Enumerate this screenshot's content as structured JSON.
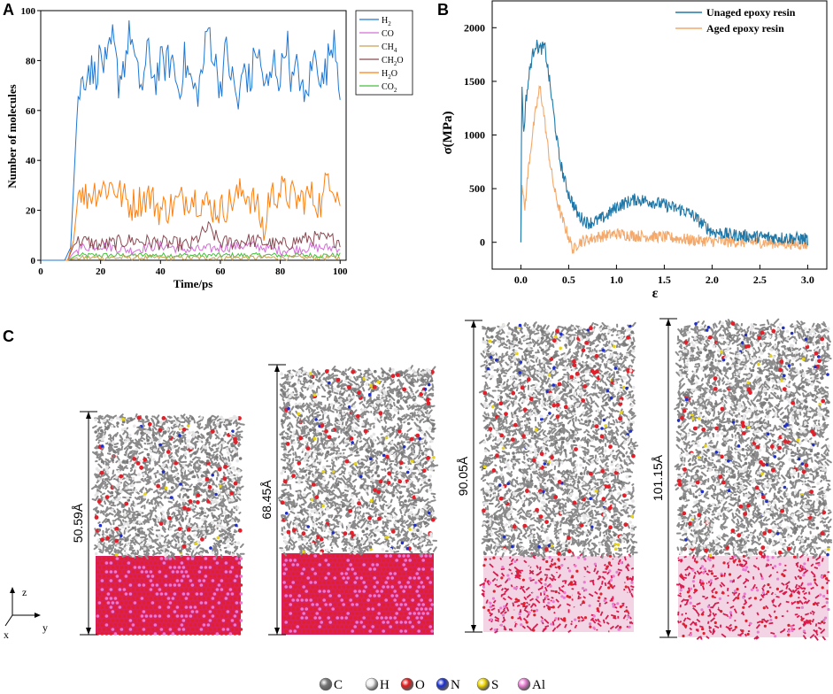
{
  "panels": {
    "a": "A",
    "b": "B",
    "c": "C"
  },
  "chart_data": [
    {
      "type": "line",
      "id": "A",
      "xlabel": "Time/ps",
      "ylabel": "Number of molecules",
      "xlim": [
        0,
        102
      ],
      "ylim": [
        0,
        100
      ],
      "xticks": [
        "0",
        "20",
        "40",
        "60",
        "80",
        "100"
      ],
      "yticks": [
        "0",
        "20",
        "40",
        "60",
        "80",
        "100"
      ],
      "legend_position": "top-right",
      "series": [
        {
          "name": "H2",
          "label_main": "H",
          "label_sub": "2",
          "color": "#1f77d4",
          "mean": 74,
          "amp": 8,
          "points": [
            [
              0,
              0
            ],
            [
              8,
              0
            ],
            [
              10,
              5
            ],
            [
              11,
              30
            ],
            [
              12,
              55
            ],
            [
              13,
              68
            ],
            [
              14,
              72
            ],
            [
              16,
              78
            ],
            [
              18,
              74
            ],
            [
              20,
              82
            ],
            [
              22,
              76
            ],
            [
              24,
              88
            ],
            [
              26,
              72
            ],
            [
              28,
              80
            ],
            [
              30,
              92
            ],
            [
              32,
              74
            ],
            [
              34,
              70
            ],
            [
              36,
              84
            ],
            [
              38,
              72
            ],
            [
              40,
              78
            ],
            [
              44,
              80
            ],
            [
              46,
              68
            ],
            [
              48,
              80
            ],
            [
              50,
              72
            ],
            [
              52,
              66
            ],
            [
              54,
              76
            ],
            [
              56,
              94
            ],
            [
              58,
              80
            ],
            [
              60,
              70
            ],
            [
              62,
              84
            ],
            [
              64,
              72
            ],
            [
              66,
              62
            ],
            [
              68,
              78
            ],
            [
              70,
              70
            ],
            [
              72,
              86
            ],
            [
              74,
              74
            ],
            [
              76,
              68
            ],
            [
              78,
              80
            ],
            [
              80,
              72
            ],
            [
              82,
              90
            ],
            [
              84,
              70
            ],
            [
              86,
              78
            ],
            [
              88,
              62
            ],
            [
              90,
              74
            ],
            [
              92,
              84
            ],
            [
              94,
              70
            ],
            [
              96,
              80
            ],
            [
              98,
              92
            ],
            [
              100,
              70
            ]
          ]
        },
        {
          "name": "CO",
          "label_main": "CO",
          "label_sub": "",
          "color": "#d36ed8",
          "mean": 5,
          "amp": 2,
          "points": [
            [
              0,
              0
            ],
            [
              9,
              0
            ],
            [
              11,
              3
            ],
            [
              13,
              5
            ],
            [
              20,
              6
            ],
            [
              30,
              4
            ],
            [
              40,
              6
            ],
            [
              50,
              4
            ],
            [
              60,
              5
            ],
            [
              70,
              6
            ],
            [
              80,
              4
            ],
            [
              90,
              5
            ],
            [
              100,
              5
            ]
          ]
        },
        {
          "name": "CH4",
          "label_main": "CH",
          "label_sub": "4",
          "color": "#c9a050",
          "mean": 1,
          "amp": 1,
          "points": [
            [
              0,
              0
            ],
            [
              9,
              0
            ],
            [
              12,
              1
            ],
            [
              30,
              1
            ],
            [
              60,
              1
            ],
            [
              100,
              1
            ]
          ]
        },
        {
          "name": "CH2O",
          "label_main": "CH",
          "label_sub": "2",
          "label_tail": "O",
          "color": "#8b4a52",
          "mean": 7,
          "amp": 3,
          "points": [
            [
              0,
              0
            ],
            [
              9,
              0
            ],
            [
              11,
              6
            ],
            [
              13,
              8
            ],
            [
              20,
              6
            ],
            [
              30,
              8
            ],
            [
              40,
              7
            ],
            [
              50,
              6
            ],
            [
              56,
              13
            ],
            [
              60,
              7
            ],
            [
              70,
              8
            ],
            [
              80,
              6
            ],
            [
              90,
              9
            ],
            [
              100,
              8
            ]
          ]
        },
        {
          "name": "H2O",
          "label_main": "H",
          "label_sub": "2",
          "label_tail": "O",
          "color": "#ff7f0e",
          "mean": 24,
          "amp": 7,
          "points": [
            [
              0,
              0
            ],
            [
              9,
              0
            ],
            [
              11,
              8
            ],
            [
              12,
              20
            ],
            [
              13,
              32
            ],
            [
              14,
              25
            ],
            [
              18,
              28
            ],
            [
              24,
              30
            ],
            [
              30,
              22
            ],
            [
              36,
              26
            ],
            [
              40,
              20
            ],
            [
              44,
              22
            ],
            [
              50,
              26
            ],
            [
              56,
              22
            ],
            [
              60,
              20
            ],
            [
              64,
              24
            ],
            [
              68,
              28
            ],
            [
              72,
              22
            ],
            [
              75,
              10
            ],
            [
              76,
              25
            ],
            [
              80,
              28
            ],
            [
              86,
              24
            ],
            [
              90,
              26
            ],
            [
              94,
              22
            ],
            [
              96,
              36
            ],
            [
              100,
              24
            ]
          ]
        },
        {
          "name": "CO2",
          "label_main": "CO",
          "label_sub": "2",
          "color": "#44c13c",
          "mean": 2,
          "amp": 1,
          "points": [
            [
              0,
              0
            ],
            [
              9,
              0
            ],
            [
              12,
              2
            ],
            [
              30,
              2
            ],
            [
              60,
              2
            ],
            [
              100,
              2
            ]
          ]
        }
      ]
    },
    {
      "type": "line",
      "id": "B",
      "xlabel": "ε",
      "ylabel": "σ(MPa)",
      "xlim": [
        -0.3,
        3.2
      ],
      "ylim": [
        -250,
        2250
      ],
      "xticks": [
        "0.0",
        "0.5",
        "1.0",
        "1.5",
        "2.0",
        "2.5",
        "3.0"
      ],
      "yticks": [
        "0",
        "500",
        "1000",
        "1500",
        "2000"
      ],
      "legend_position": "top-right",
      "series": [
        {
          "name": "Unaged epoxy resin",
          "color": "#1f78a8",
          "noise": 60,
          "points": [
            [
              0,
              0
            ],
            [
              0.01,
              1500
            ],
            [
              0.03,
              1000
            ],
            [
              0.05,
              1300
            ],
            [
              0.1,
              1650
            ],
            [
              0.15,
              1850
            ],
            [
              0.2,
              1800
            ],
            [
              0.25,
              1820
            ],
            [
              0.3,
              1500
            ],
            [
              0.35,
              1150
            ],
            [
              0.4,
              800
            ],
            [
              0.45,
              600
            ],
            [
              0.5,
              450
            ],
            [
              0.6,
              250
            ],
            [
              0.7,
              180
            ],
            [
              0.8,
              200
            ],
            [
              0.9,
              250
            ],
            [
              1.0,
              330
            ],
            [
              1.1,
              370
            ],
            [
              1.2,
              400
            ],
            [
              1.3,
              390
            ],
            [
              1.4,
              370
            ],
            [
              1.5,
              350
            ],
            [
              1.6,
              320
            ],
            [
              1.7,
              300
            ],
            [
              1.8,
              250
            ],
            [
              1.9,
              170
            ],
            [
              2.0,
              100
            ],
            [
              2.2,
              70
            ],
            [
              2.5,
              50
            ],
            [
              2.8,
              40
            ],
            [
              3.0,
              30
            ]
          ]
        },
        {
          "name": "Aged epoxy resin",
          "color": "#f4a86a",
          "noise": 55,
          "points": [
            [
              0,
              0
            ],
            [
              0.01,
              550
            ],
            [
              0.04,
              300
            ],
            [
              0.08,
              700
            ],
            [
              0.12,
              1000
            ],
            [
              0.16,
              1250
            ],
            [
              0.2,
              1450
            ],
            [
              0.24,
              1200
            ],
            [
              0.28,
              900
            ],
            [
              0.32,
              650
            ],
            [
              0.36,
              450
            ],
            [
              0.42,
              250
            ],
            [
              0.5,
              50
            ],
            [
              0.55,
              -80
            ],
            [
              0.6,
              0
            ],
            [
              0.8,
              50
            ],
            [
              1.0,
              80
            ],
            [
              1.2,
              60
            ],
            [
              1.5,
              50
            ],
            [
              1.8,
              20
            ],
            [
              2.0,
              10
            ],
            [
              2.5,
              0
            ],
            [
              3.0,
              -20
            ]
          ]
        }
      ]
    }
  ],
  "panel_c": {
    "axes": {
      "z": "z",
      "y": "y",
      "x": "x"
    },
    "boxes": [
      {
        "height_label": "50.59Å",
        "substrate_style": "ordered"
      },
      {
        "height_label": "68.45Å",
        "substrate_style": "ordered"
      },
      {
        "height_label": "90.05Å",
        "substrate_style": "disordered"
      },
      {
        "height_label": "101.15Å",
        "substrate_style": "disordered"
      }
    ],
    "atom_colors": {
      "C": "#7a7a7a",
      "H": "#e6e6e6",
      "O": "#e0202a",
      "N": "#1f2fc8",
      "S": "#e6d21a",
      "Al": "#e87ad2"
    },
    "legend": [
      {
        "symbol": "C",
        "color": "#7a7a7a"
      },
      {
        "symbol": "H",
        "color": "#eeeeee"
      },
      {
        "symbol": "O",
        "color": "#e41a1c"
      },
      {
        "symbol": "N",
        "color": "#1a2fd0"
      },
      {
        "symbol": "S",
        "color": "#f0d800"
      },
      {
        "symbol": "Al",
        "color": "#ea7fd6"
      }
    ]
  }
}
